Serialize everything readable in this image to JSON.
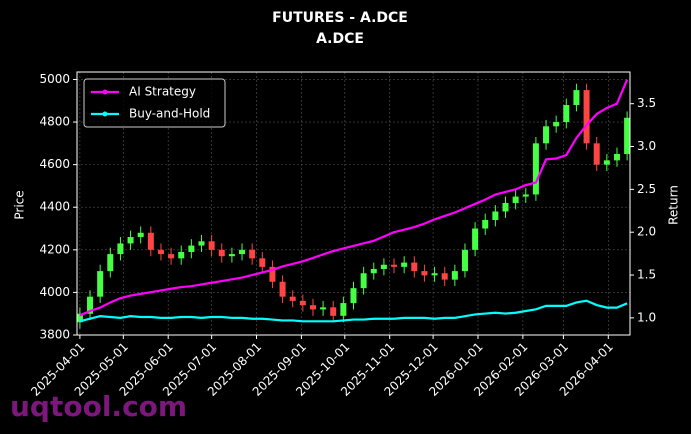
{
  "chart_data": {
    "type": "candlestick",
    "title": "FUTURES - A.DCE",
    "subtitle": "A.DCE",
    "ylabel": "Price",
    "y2label": "Return",
    "watermark": "uqtool.com",
    "x": [
      "2025-04-01",
      "2025-04-08",
      "2025-04-15",
      "2025-04-22",
      "2025-04-29",
      "2025-05-06",
      "2025-05-13",
      "2025-05-20",
      "2025-05-27",
      "2025-06-03",
      "2025-06-10",
      "2025-06-17",
      "2025-06-24",
      "2025-07-01",
      "2025-07-08",
      "2025-07-15",
      "2025-07-22",
      "2025-07-29",
      "2025-08-05",
      "2025-08-12",
      "2025-08-19",
      "2025-08-26",
      "2025-09-02",
      "2025-09-09",
      "2025-09-16",
      "2025-09-23",
      "2025-09-30",
      "2025-10-07",
      "2025-10-14",
      "2025-10-21",
      "2025-10-28",
      "2025-11-04",
      "2025-11-11",
      "2025-11-18",
      "2025-11-25",
      "2025-12-02",
      "2025-12-09",
      "2025-12-16",
      "2025-12-23",
      "2025-12-30",
      "2026-01-06",
      "2026-01-13",
      "2026-01-20",
      "2026-01-27",
      "2026-02-03",
      "2026-02-10",
      "2026-02-17",
      "2026-02-24",
      "2026-03-03",
      "2026-03-10",
      "2026-03-17",
      "2026-03-24",
      "2026-03-31",
      "2026-04-07",
      "2026-04-14"
    ],
    "open": [
      3860,
      3900,
      3980,
      4100,
      4180,
      4230,
      4260,
      4280,
      4200,
      4180,
      4160,
      4190,
      4220,
      4240,
      4200,
      4170,
      4180,
      4200,
      4160,
      4120,
      4050,
      3980,
      3960,
      3940,
      3920,
      3930,
      3890,
      3950,
      4020,
      4090,
      4110,
      4130,
      4120,
      4140,
      4100,
      4080,
      4090,
      4060,
      4100,
      4200,
      4300,
      4340,
      4380,
      4420,
      4450,
      4460,
      4700,
      4780,
      4800,
      4880,
      4950,
      4700,
      4600,
      4620,
      4650
    ],
    "high": [
      3930,
      4010,
      4130,
      4210,
      4260,
      4290,
      4310,
      4310,
      4230,
      4210,
      4220,
      4250,
      4270,
      4270,
      4230,
      4210,
      4230,
      4230,
      4190,
      4150,
      4080,
      4010,
      3990,
      3970,
      3960,
      3960,
      3980,
      4050,
      4120,
      4140,
      4160,
      4160,
      4170,
      4170,
      4130,
      4120,
      4120,
      4130,
      4230,
      4330,
      4370,
      4410,
      4450,
      4480,
      4490,
      4730,
      4810,
      4830,
      4910,
      4980,
      4980,
      4730,
      4650,
      4680,
      4850
    ],
    "low": [
      3830,
      3870,
      3950,
      4070,
      4150,
      4200,
      4230,
      4170,
      4150,
      4130,
      4130,
      4160,
      4190,
      4170,
      4140,
      4140,
      4150,
      4130,
      4090,
      4020,
      3950,
      3930,
      3910,
      3890,
      3890,
      3860,
      3860,
      3920,
      3990,
      4060,
      4080,
      4090,
      4090,
      4070,
      4050,
      4050,
      4030,
      4030,
      4070,
      4170,
      4270,
      4310,
      4350,
      4390,
      4420,
      4430,
      4670,
      4750,
      4770,
      4850,
      4670,
      4570,
      4570,
      4590,
      4620
    ],
    "close": [
      3900,
      3980,
      4100,
      4180,
      4230,
      4260,
      4280,
      4200,
      4180,
      4160,
      4190,
      4220,
      4240,
      4200,
      4170,
      4180,
      4200,
      4160,
      4120,
      4050,
      3980,
      3960,
      3940,
      3920,
      3930,
      3890,
      3950,
      4020,
      4090,
      4110,
      4130,
      4120,
      4140,
      4100,
      4080,
      4090,
      4060,
      4100,
      4200,
      4300,
      4340,
      4380,
      4420,
      4450,
      4460,
      4700,
      4780,
      4800,
      4880,
      4950,
      4700,
      4600,
      4620,
      4650,
      4820
    ],
    "up_color": "#44ff44",
    "down_color": "#ff4444",
    "series": [
      {
        "name": "AI Strategy",
        "color": "#ff00ff",
        "axis": "y2",
        "values": [
          1.03,
          1.08,
          1.12,
          1.18,
          1.23,
          1.26,
          1.28,
          1.3,
          1.32,
          1.34,
          1.36,
          1.37,
          1.39,
          1.41,
          1.43,
          1.45,
          1.47,
          1.5,
          1.53,
          1.56,
          1.6,
          1.63,
          1.66,
          1.7,
          1.74,
          1.78,
          1.81,
          1.84,
          1.87,
          1.9,
          1.95,
          2.0,
          2.03,
          2.06,
          2.1,
          2.15,
          2.19,
          2.23,
          2.28,
          2.33,
          2.38,
          2.44,
          2.47,
          2.5,
          2.55,
          2.58,
          2.85,
          2.86,
          2.9,
          3.1,
          3.25,
          3.38,
          3.45,
          3.5,
          3.78
        ]
      },
      {
        "name": "Buy-and-Hold",
        "color": "#00ffff",
        "axis": "y2",
        "values": [
          0.96,
          0.99,
          1.02,
          1.01,
          1.0,
          1.02,
          1.01,
          1.01,
          1.0,
          1.0,
          1.01,
          1.01,
          1.0,
          1.01,
          1.01,
          1.0,
          1.0,
          0.99,
          0.99,
          0.98,
          0.97,
          0.97,
          0.96,
          0.96,
          0.96,
          0.96,
          0.97,
          0.98,
          0.98,
          0.99,
          0.99,
          0.99,
          1.0,
          1.0,
          1.0,
          0.99,
          1.0,
          1.0,
          1.02,
          1.04,
          1.05,
          1.06,
          1.05,
          1.06,
          1.08,
          1.1,
          1.14,
          1.14,
          1.14,
          1.18,
          1.2,
          1.15,
          1.12,
          1.12,
          1.17
        ]
      }
    ],
    "xlim": [
      "2025-03-30",
      "2026-04-16"
    ],
    "xticks": [
      "2025-04-01",
      "2025-05-01",
      "2025-06-01",
      "2025-07-01",
      "2025-08-01",
      "2025-09-01",
      "2025-10-01",
      "2025-11-01",
      "2025-12-01",
      "2026-01-01",
      "2026-02-01",
      "2026-03-01",
      "2026-04-01"
    ],
    "ylim": [
      3800,
      5035
    ],
    "yticks": [
      3800,
      4000,
      4200,
      4400,
      4600,
      4800,
      5000
    ],
    "y2lim": [
      0.8,
      3.87
    ],
    "y2ticks": [
      {
        "value": 1,
        "label": "1.0"
      },
      1.5,
      {
        "value": 2,
        "label": "2.0"
      },
      2.5,
      {
        "value": 3,
        "label": "3.0"
      },
      3.5
    ],
    "grid": true,
    "legend": "upper left"
  }
}
